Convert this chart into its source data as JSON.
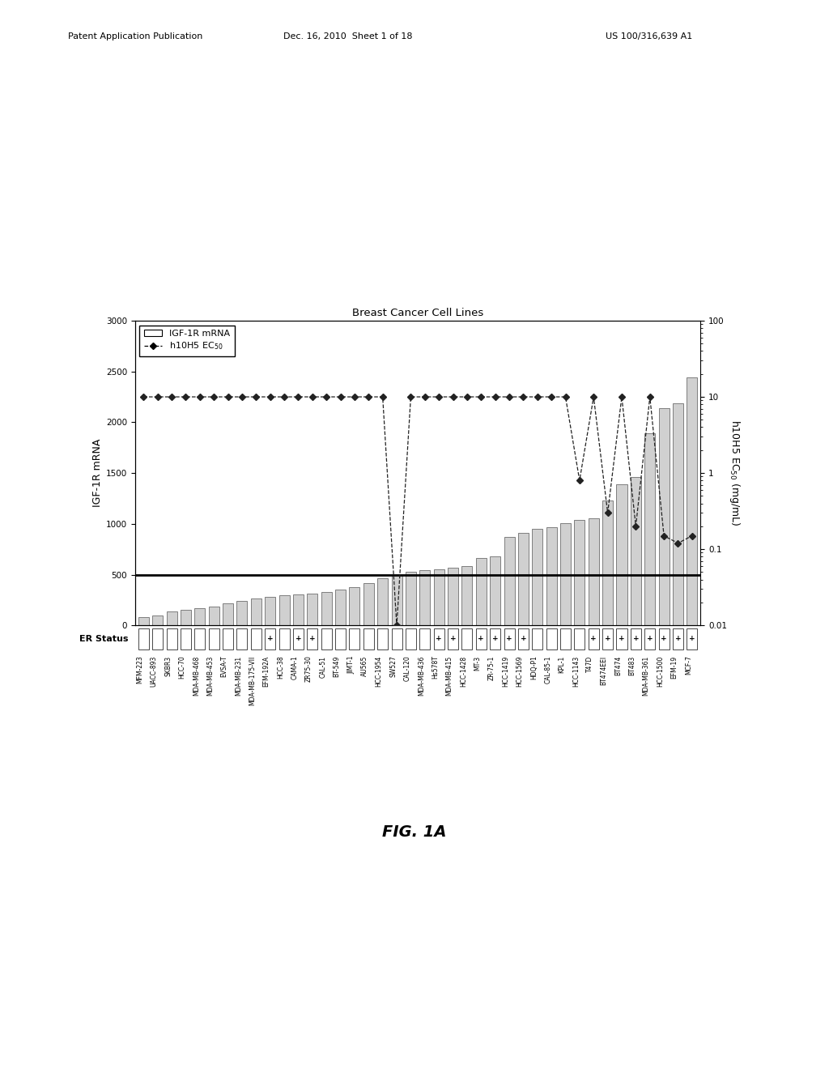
{
  "title": "Breast Cancer Cell Lines",
  "ylabel_left": "IGF-1R mRNA",
  "ylabel_right": "h10H5 EC$_{50}$ (mg/mL)",
  "fig_label": "FIG. 1A",
  "ylim_left": [
    0,
    3000
  ],
  "yticks_left": [
    0,
    500,
    1000,
    1500,
    2000,
    2500,
    3000
  ],
  "horizontal_line": 500,
  "cell_lines": [
    "MFM-223",
    "UACC-893",
    "SKBR3",
    "HCC-70",
    "MDA-MB-468",
    "MDA-MB-453",
    "EVSA-T",
    "MDA-MB-231",
    "MDA-MB-175-VII",
    "EFM-192A",
    "HCC-38",
    "CAMA-1",
    "ZR75-30",
    "CAL-51",
    "BT-549",
    "JIMT-1",
    "AU565",
    "HCC-1954",
    "SW527",
    "CAL-120",
    "MDA-MB-436",
    "Hs578T",
    "MDA-MB-415",
    "HCC-1428",
    "MT-3",
    "ZR-75-1",
    "HCC-1419",
    "HCC-1569",
    "HDQ-P1",
    "CAL-85-1",
    "KPL-1",
    "HCC-1143",
    "T47D",
    "BT474EEI",
    "BT474",
    "BT483",
    "MDA-MB-361",
    "HCC-1500",
    "EFM-19",
    "MCF-7"
  ],
  "er_status": [
    "",
    "",
    "",
    "",
    "",
    "",
    "",
    "",
    "",
    "+",
    "",
    "+",
    "+",
    "",
    "",
    "",
    "",
    "",
    "",
    "",
    "",
    "+",
    "+",
    "",
    "+",
    "+",
    "+",
    "+",
    "",
    "",
    "",
    "",
    "+",
    "+",
    "+",
    "+",
    "+",
    "+",
    "+",
    "+"
  ],
  "mrna_values": [
    80,
    100,
    140,
    155,
    170,
    185,
    220,
    240,
    265,
    280,
    295,
    305,
    315,
    325,
    355,
    375,
    415,
    465,
    500,
    530,
    545,
    555,
    565,
    585,
    665,
    680,
    870,
    910,
    950,
    970,
    1005,
    1035,
    1055,
    1230,
    1390,
    1460,
    1890,
    2140,
    2190,
    2440
  ],
  "ec50_values": [
    10,
    10,
    10,
    10,
    10,
    10,
    10,
    10,
    10,
    10,
    10,
    10,
    10,
    10,
    10,
    10,
    10,
    10,
    0.01,
    10,
    10,
    10,
    10,
    10,
    10,
    10,
    10,
    10,
    10,
    10,
    10,
    0.8,
    10,
    0.3,
    10,
    0.2,
    10,
    0.15,
    0.12,
    0.15
  ],
  "bar_color": "#d0d0d0",
  "bar_edge_color": "#555555",
  "line_color": "#222222",
  "dot_color": "#222222",
  "hline_color": "#000000",
  "background_color": "#ffffff",
  "header_left": "Patent Application Publication",
  "header_mid": "Dec. 16, 2010  Sheet 1 of 18",
  "header_right": "US 100/316,639 A1"
}
